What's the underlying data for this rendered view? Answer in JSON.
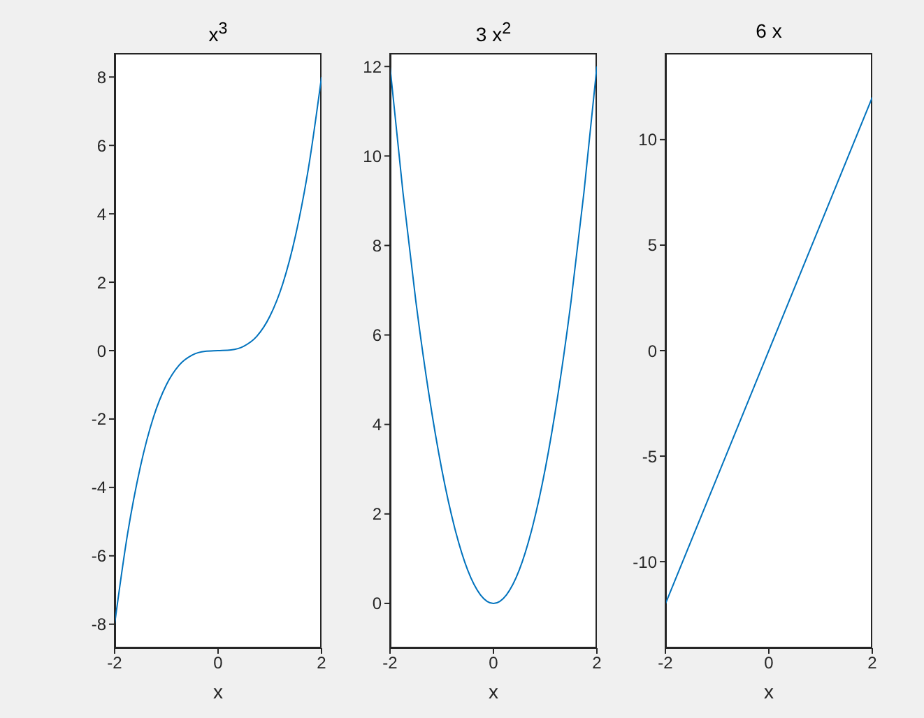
{
  "chart_data": [
    {
      "type": "line",
      "title": "x$^{3}$",
      "xlabel": "x",
      "color": "#0072bd",
      "xlim": [
        -2,
        2
      ],
      "xticks": [
        -2,
        0,
        2
      ],
      "ylim": [
        -8.7,
        8.7
      ],
      "yticks": [
        -8,
        -6,
        -4,
        -2,
        0,
        2,
        4,
        6,
        8
      ],
      "x": [
        -2,
        -1.75,
        -1.5,
        -1.25,
        -1,
        -0.75,
        -0.5,
        -0.25,
        0,
        0.25,
        0.5,
        0.75,
        1,
        1.25,
        1.5,
        1.75,
        2
      ],
      "values": [
        -8,
        -5.36,
        -3.38,
        -1.95,
        -1,
        -0.42,
        -0.13,
        -0.02,
        0,
        0.02,
        0.13,
        0.42,
        1,
        1.95,
        3.38,
        5.36,
        8
      ]
    },
    {
      "type": "line",
      "title": "3 x$^{2}$",
      "xlabel": "x",
      "color": "#0072bd",
      "xlim": [
        -2,
        2
      ],
      "xticks": [
        -2,
        0,
        2
      ],
      "ylim": [
        -1,
        12.3
      ],
      "yticks": [
        0,
        2,
        4,
        6,
        8,
        10,
        12
      ],
      "x": [
        -2,
        -1.75,
        -1.5,
        -1.25,
        -1,
        -0.75,
        -0.5,
        -0.25,
        0,
        0.25,
        0.5,
        0.75,
        1,
        1.25,
        1.5,
        1.75,
        2
      ],
      "values": [
        12,
        9.19,
        6.75,
        4.69,
        3,
        1.69,
        0.75,
        0.19,
        0,
        0.19,
        0.75,
        1.69,
        3,
        4.69,
        6.75,
        9.19,
        12
      ]
    },
    {
      "type": "line",
      "title": "6 x",
      "xlabel": "x",
      "color": "#0072bd",
      "xlim": [
        -2,
        2
      ],
      "xticks": [
        -2,
        0,
        2
      ],
      "ylim": [
        -14.1,
        14.1
      ],
      "yticks": [
        -10,
        -5,
        0,
        5,
        10
      ],
      "x": [
        -2,
        2
      ],
      "values": [
        -12,
        12
      ]
    }
  ]
}
